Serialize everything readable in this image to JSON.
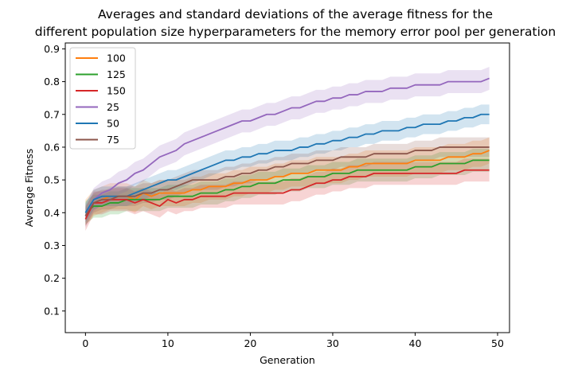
{
  "chart_data": {
    "type": "line",
    "title_lines": [
      "Averages and standard deviations of the average fitness for the",
      "different population size hyperparameters for the memory error pool per generation"
    ],
    "xlabel": "Generation",
    "ylabel": "Average Fitness",
    "xlim": [
      -2.45,
      51.45
    ],
    "ylim": [
      0.034,
      0.918
    ],
    "xticks": [
      0,
      10,
      20,
      30,
      40,
      50
    ],
    "yticks": [
      0.1,
      0.2,
      0.3,
      0.4,
      0.5,
      0.6,
      0.7,
      0.8,
      0.9
    ],
    "grid": false,
    "legend_position": "top-left",
    "series": [
      {
        "name": "100",
        "color": "#ff7f0e",
        "std": 0.04,
        "values": [
          0.4,
          0.43,
          0.44,
          0.45,
          0.45,
          0.45,
          0.44,
          0.46,
          0.45,
          0.46,
          0.46,
          0.46,
          0.46,
          0.47,
          0.47,
          0.48,
          0.48,
          0.48,
          0.49,
          0.49,
          0.5,
          0.5,
          0.5,
          0.51,
          0.51,
          0.52,
          0.52,
          0.52,
          0.53,
          0.53,
          0.53,
          0.53,
          0.54,
          0.54,
          0.55,
          0.55,
          0.55,
          0.55,
          0.55,
          0.55,
          0.56,
          0.56,
          0.56,
          0.56,
          0.57,
          0.57,
          0.57,
          0.58,
          0.58,
          0.59
        ]
      },
      {
        "name": "125",
        "color": "#2ca02c",
        "std": 0.035,
        "values": [
          0.4,
          0.42,
          0.42,
          0.43,
          0.43,
          0.44,
          0.44,
          0.44,
          0.44,
          0.44,
          0.45,
          0.45,
          0.45,
          0.45,
          0.46,
          0.46,
          0.46,
          0.47,
          0.47,
          0.48,
          0.48,
          0.49,
          0.49,
          0.49,
          0.5,
          0.5,
          0.5,
          0.51,
          0.51,
          0.51,
          0.52,
          0.52,
          0.52,
          0.53,
          0.53,
          0.53,
          0.53,
          0.53,
          0.53,
          0.53,
          0.54,
          0.54,
          0.54,
          0.55,
          0.55,
          0.55,
          0.55,
          0.56,
          0.56,
          0.56
        ]
      },
      {
        "name": "150",
        "color": "#d62728",
        "std": 0.035,
        "values": [
          0.38,
          0.43,
          0.43,
          0.44,
          0.44,
          0.44,
          0.43,
          0.44,
          0.43,
          0.42,
          0.44,
          0.43,
          0.44,
          0.44,
          0.45,
          0.45,
          0.45,
          0.45,
          0.46,
          0.46,
          0.46,
          0.46,
          0.46,
          0.46,
          0.46,
          0.47,
          0.47,
          0.48,
          0.49,
          0.49,
          0.5,
          0.5,
          0.51,
          0.51,
          0.51,
          0.52,
          0.52,
          0.52,
          0.52,
          0.52,
          0.52,
          0.52,
          0.52,
          0.52,
          0.52,
          0.52,
          0.53,
          0.53,
          0.53,
          0.53
        ]
      },
      {
        "name": "25",
        "color": "#9467bd",
        "std": 0.035,
        "values": [
          0.39,
          0.44,
          0.46,
          0.47,
          0.49,
          0.5,
          0.52,
          0.53,
          0.55,
          0.57,
          0.58,
          0.59,
          0.61,
          0.62,
          0.63,
          0.64,
          0.65,
          0.66,
          0.67,
          0.68,
          0.68,
          0.69,
          0.7,
          0.7,
          0.71,
          0.72,
          0.72,
          0.73,
          0.74,
          0.74,
          0.75,
          0.75,
          0.76,
          0.76,
          0.77,
          0.77,
          0.77,
          0.78,
          0.78,
          0.78,
          0.79,
          0.79,
          0.79,
          0.79,
          0.8,
          0.8,
          0.8,
          0.8,
          0.8,
          0.81
        ]
      },
      {
        "name": "50",
        "color": "#1f77b4",
        "std": 0.03,
        "values": [
          0.4,
          0.44,
          0.45,
          0.45,
          0.45,
          0.45,
          0.46,
          0.47,
          0.48,
          0.49,
          0.5,
          0.5,
          0.51,
          0.52,
          0.53,
          0.54,
          0.55,
          0.56,
          0.56,
          0.57,
          0.57,
          0.58,
          0.58,
          0.59,
          0.59,
          0.59,
          0.6,
          0.6,
          0.61,
          0.61,
          0.62,
          0.62,
          0.63,
          0.63,
          0.64,
          0.64,
          0.65,
          0.65,
          0.65,
          0.66,
          0.66,
          0.67,
          0.67,
          0.67,
          0.68,
          0.68,
          0.69,
          0.69,
          0.7,
          0.7
        ]
      },
      {
        "name": "75",
        "color": "#8c564b",
        "std": 0.03,
        "values": [
          0.39,
          0.43,
          0.44,
          0.44,
          0.45,
          0.45,
          0.45,
          0.46,
          0.46,
          0.47,
          0.47,
          0.48,
          0.49,
          0.5,
          0.5,
          0.5,
          0.5,
          0.51,
          0.51,
          0.52,
          0.52,
          0.53,
          0.53,
          0.54,
          0.54,
          0.55,
          0.55,
          0.55,
          0.56,
          0.56,
          0.56,
          0.57,
          0.57,
          0.57,
          0.57,
          0.58,
          0.58,
          0.58,
          0.58,
          0.58,
          0.59,
          0.59,
          0.59,
          0.6,
          0.6,
          0.6,
          0.6,
          0.6,
          0.6,
          0.6
        ]
      }
    ]
  }
}
